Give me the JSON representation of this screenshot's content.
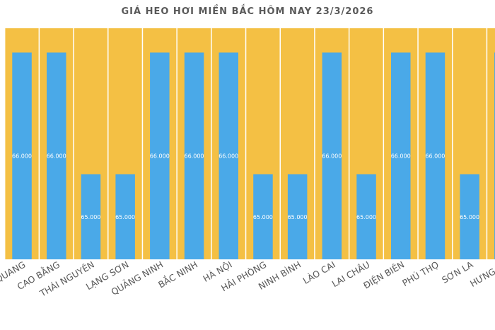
{
  "chart_data": {
    "type": "bar",
    "title": "GIÁ HEO HƠI MIỀN BẮC HÔM NAY 23/3/2026",
    "xlabel": "",
    "ylabel": "",
    "ylim": [
      64300,
      66200
    ],
    "grid": false,
    "legend": "none",
    "categories": [
      "TUYÊN QUANG",
      "CAO BẰNG",
      "THÁI NGUYÊN",
      "LẠNG SƠN",
      "QUẢNG NINH",
      "BẮC NINH",
      "HÀ NỘI",
      "HẢI PHÒNG",
      "NINH BÌNH",
      "LÀO CAI",
      "LAI CHÂU",
      "ĐIỆN BIÊN",
      "PHÚ THỌ",
      "SƠN LA",
      "HƯNG YÊN"
    ],
    "visible_labels": [
      "QUANG",
      "CAO BẰNG",
      "THÁI NGUYÊN",
      "LẠNG SƠN",
      "QUẢNG NINH",
      "BẮC NINH",
      "HÀ NỘI",
      "HẢI PHÒNG",
      "NINH BÌNH",
      "LÀO CAI",
      "LAI CHÂU",
      "ĐIỆN BIÊN",
      "PHÚ THỌ",
      "SƠN LA",
      "HƯNG YÊ"
    ],
    "values": [
      66000,
      66000,
      65000,
      65000,
      66000,
      66000,
      66000,
      65000,
      65000,
      66000,
      65000,
      66000,
      66000,
      65000,
      66000
    ],
    "value_labels": [
      "66.000",
      "66.000",
      "65.000",
      "65.000",
      "66.000",
      "66.000",
      "66.000",
      "65.000",
      "65.000",
      "66.000",
      "65.000",
      "66.000",
      "66.000",
      "65.000",
      ""
    ],
    "colors": {
      "bar": "#4aa9e8",
      "stripe": "#f4c044",
      "title": "#595959",
      "label": "#595959",
      "value_label": "#ffffff"
    }
  }
}
